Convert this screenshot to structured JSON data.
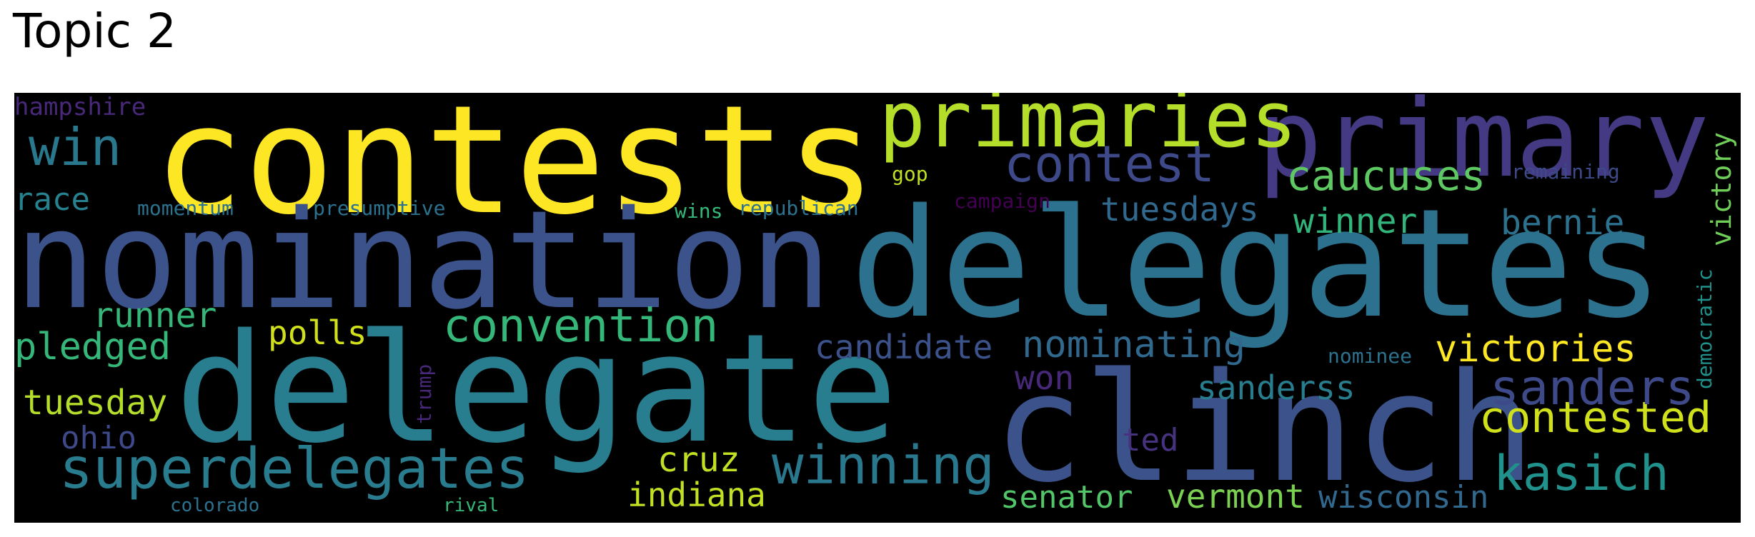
{
  "title": "Topic 2",
  "colors": {
    "yellow": "#fde725",
    "lime": "#b5de2b",
    "green": "#6ece58",
    "teal_green": "#35b779",
    "teal": "#26828e",
    "blue_teal": "#31688e",
    "blue": "#3e4989",
    "indigo": "#482878",
    "purple": "#440154"
  },
  "words": [
    {
      "text": "contests",
      "color": "#fde725"
    },
    {
      "text": "nomination",
      "color": "#3b528b"
    },
    {
      "text": "delegates",
      "color": "#2c728e"
    },
    {
      "text": "delegate",
      "color": "#287d8e"
    },
    {
      "text": "clinch",
      "color": "#3b528b"
    },
    {
      "text": "primary",
      "color": "#443a83"
    },
    {
      "text": "primaries",
      "color": "#b5de2b"
    },
    {
      "text": "contest",
      "color": "#3e4989"
    },
    {
      "text": "superdelegates",
      "color": "#297b8e"
    },
    {
      "text": "convention",
      "color": "#35b779"
    },
    {
      "text": "winning",
      "color": "#2a788e"
    },
    {
      "text": "kasich",
      "color": "#21918c"
    },
    {
      "text": "contested",
      "color": "#d0e11c"
    },
    {
      "text": "sanders",
      "color": "#3e4989"
    },
    {
      "text": "caucuses",
      "color": "#5ec962"
    },
    {
      "text": "win",
      "color": "#2a788e"
    },
    {
      "text": "nominating",
      "color": "#31688e"
    },
    {
      "text": "victories",
      "color": "#fde725"
    },
    {
      "text": "tuesday",
      "color": "#b5de2b"
    },
    {
      "text": "runner",
      "color": "#35b779"
    },
    {
      "text": "pledged",
      "color": "#35b779"
    },
    {
      "text": "polls",
      "color": "#d0e11c"
    },
    {
      "text": "winner",
      "color": "#31b57b"
    },
    {
      "text": "bernie",
      "color": "#2c728e"
    },
    {
      "text": "candidate",
      "color": "#3b528b"
    },
    {
      "text": "tuesdays",
      "color": "#31688e"
    },
    {
      "text": "cruz",
      "color": "#c2df23"
    },
    {
      "text": "indiana",
      "color": "#c2df23"
    },
    {
      "text": "vermont",
      "color": "#7ad151"
    },
    {
      "text": "senator",
      "color": "#52c569"
    },
    {
      "text": "sanderss",
      "color": "#287d8e"
    },
    {
      "text": "won",
      "color": "#482878"
    },
    {
      "text": "race",
      "color": "#26828e"
    },
    {
      "text": "ohio",
      "color": "#3e4989"
    },
    {
      "text": "ted",
      "color": "#46327e"
    },
    {
      "text": "wisconsin",
      "color": "#31688e"
    },
    {
      "text": "victory",
      "color": "#6ece58"
    },
    {
      "text": "hampshire",
      "color": "#482878"
    },
    {
      "text": "momentum",
      "color": "#2c728e"
    },
    {
      "text": "presumptive",
      "color": "#2c728e"
    },
    {
      "text": "gop",
      "color": "#c2df23"
    },
    {
      "text": "wins",
      "color": "#35b779"
    },
    {
      "text": "republican",
      "color": "#2c728e"
    },
    {
      "text": "campaign",
      "color": "#440154"
    },
    {
      "text": "remaining",
      "color": "#3e4989"
    },
    {
      "text": "nominee",
      "color": "#2c728e"
    },
    {
      "text": "democratic",
      "color": "#21918c"
    },
    {
      "text": "trump",
      "color": "#482878"
    },
    {
      "text": "colorado",
      "color": "#2c728e"
    },
    {
      "text": "rival",
      "color": "#35b779"
    }
  ]
}
